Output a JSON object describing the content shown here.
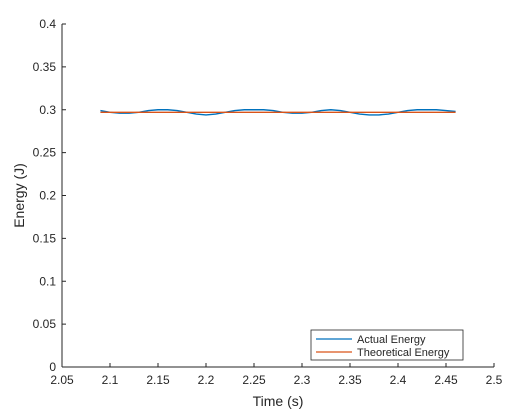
{
  "chart_data": {
    "type": "line",
    "xlabel": "Time (s)",
    "ylabel": "Energy (J)",
    "xlim": [
      2.05,
      2.5
    ],
    "ylim": [
      0,
      0.4
    ],
    "xticks": [
      2.05,
      2.1,
      2.15,
      2.2,
      2.25,
      2.3,
      2.35,
      2.4,
      2.45,
      2.5
    ],
    "xtick_labels": [
      "2.05",
      "2.1",
      "2.15",
      "2.2",
      "2.25",
      "2.3",
      "2.35",
      "2.4",
      "2.45",
      "2.5"
    ],
    "yticks": [
      0,
      0.05,
      0.1,
      0.15,
      0.2,
      0.25,
      0.3,
      0.35,
      0.4
    ],
    "ytick_labels": [
      "0",
      "0.05",
      "0.1",
      "0.15",
      "0.2",
      "0.25",
      "0.3",
      "0.35",
      "0.4"
    ],
    "grid": false,
    "legend_position": "bottom-right",
    "series": [
      {
        "name": "Actual Energy",
        "color": "#0072BD",
        "x": [
          2.09,
          2.1,
          2.11,
          2.12,
          2.13,
          2.14,
          2.15,
          2.16,
          2.17,
          2.18,
          2.19,
          2.2,
          2.21,
          2.22,
          2.23,
          2.24,
          2.25,
          2.26,
          2.27,
          2.28,
          2.29,
          2.3,
          2.31,
          2.32,
          2.33,
          2.34,
          2.35,
          2.36,
          2.37,
          2.38,
          2.39,
          2.4,
          2.41,
          2.42,
          2.43,
          2.44,
          2.45,
          2.46
        ],
        "y": [
          0.299,
          0.297,
          0.296,
          0.296,
          0.297,
          0.299,
          0.3,
          0.3,
          0.299,
          0.297,
          0.295,
          0.294,
          0.295,
          0.297,
          0.299,
          0.3,
          0.3,
          0.3,
          0.299,
          0.297,
          0.296,
          0.296,
          0.297,
          0.299,
          0.3,
          0.299,
          0.297,
          0.295,
          0.294,
          0.294,
          0.295,
          0.297,
          0.299,
          0.3,
          0.3,
          0.3,
          0.299,
          0.298
        ]
      },
      {
        "name": "Theoretical Energy",
        "color": "#D95319",
        "x": [
          2.09,
          2.46
        ],
        "y": [
          0.297,
          0.297
        ]
      }
    ]
  }
}
